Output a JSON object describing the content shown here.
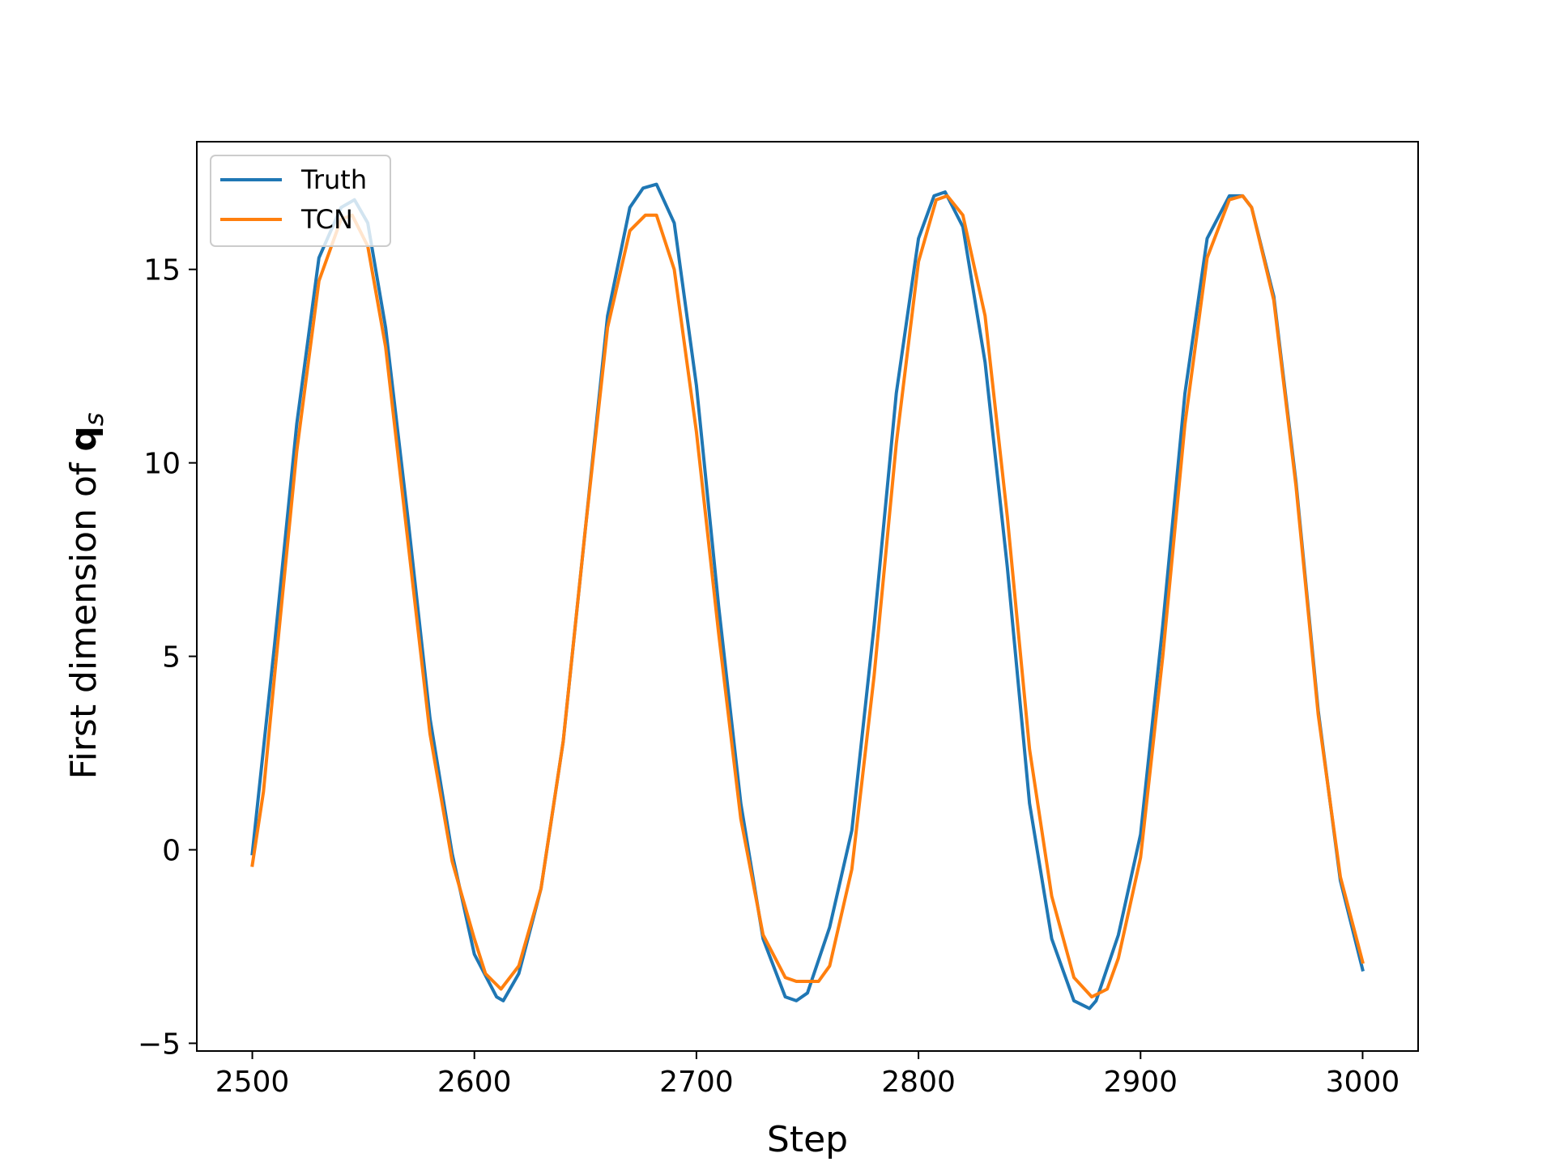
{
  "chart_data": {
    "type": "line",
    "title": "",
    "xlabel": "Step",
    "ylabel_text": "First dimension of ",
    "ylabel_symbol": "q",
    "ylabel_subscript": "s",
    "xlim": [
      2475,
      3025
    ],
    "ylim": [
      -5.2,
      18.3
    ],
    "xticks": [
      2500,
      2600,
      2700,
      2800,
      2900,
      3000
    ],
    "xtick_labels": [
      "2500",
      "2600",
      "2700",
      "2800",
      "2900",
      "3000"
    ],
    "yticks": [
      -5,
      0,
      5,
      10,
      15
    ],
    "ytick_labels": [
      "−5",
      "0",
      "5",
      "10",
      "15"
    ],
    "grid": false,
    "legend_position": "top-left",
    "series": [
      {
        "name": "Truth",
        "color": "#1f77b4",
        "x": [
          2500,
          2510,
          2520,
          2530,
          2540,
          2546,
          2552,
          2560,
          2570,
          2580,
          2590,
          2600,
          2610,
          2613,
          2620,
          2630,
          2640,
          2650,
          2660,
          2670,
          2676,
          2682,
          2690,
          2700,
          2710,
          2720,
          2730,
          2740,
          2745,
          2750,
          2760,
          2770,
          2780,
          2790,
          2800,
          2807,
          2812,
          2820,
          2830,
          2840,
          2850,
          2860,
          2870,
          2877,
          2880,
          2890,
          2900,
          2910,
          2920,
          2930,
          2940,
          2946,
          2950,
          2960,
          2970,
          2980,
          2990,
          3000
        ],
        "y": [
          -0.1,
          5.3,
          11.0,
          15.3,
          16.6,
          16.8,
          16.2,
          13.5,
          8.6,
          3.4,
          -0.1,
          -2.7,
          -3.8,
          -3.9,
          -3.2,
          -1.0,
          2.8,
          8.3,
          13.8,
          16.6,
          17.1,
          17.2,
          16.2,
          12.0,
          6.3,
          1.2,
          -2.3,
          -3.8,
          -3.9,
          -3.7,
          -2.0,
          0.5,
          5.8,
          11.8,
          15.8,
          16.9,
          17.0,
          16.1,
          12.6,
          7.3,
          1.2,
          -2.3,
          -3.9,
          -4.1,
          -3.9,
          -2.2,
          0.4,
          5.8,
          11.8,
          15.8,
          16.9,
          16.9,
          16.6,
          14.3,
          9.5,
          3.6,
          -0.8,
          -3.1
        ]
      },
      {
        "name": "TCN",
        "color": "#ff7f0e",
        "x": [
          2500,
          2505,
          2510,
          2520,
          2530,
          2540,
          2545,
          2552,
          2560,
          2570,
          2580,
          2590,
          2600,
          2605,
          2612,
          2620,
          2630,
          2640,
          2650,
          2660,
          2670,
          2677,
          2682,
          2690,
          2700,
          2710,
          2720,
          2730,
          2740,
          2745,
          2755,
          2760,
          2770,
          2780,
          2790,
          2800,
          2808,
          2813,
          2820,
          2830,
          2840,
          2850,
          2860,
          2870,
          2878,
          2885,
          2890,
          2900,
          2910,
          2920,
          2930,
          2940,
          2946,
          2950,
          2960,
          2970,
          2980,
          2990,
          3000
        ],
        "y": [
          -0.4,
          1.5,
          4.5,
          10.3,
          14.7,
          16.3,
          16.4,
          15.6,
          13.0,
          8.0,
          3.0,
          -0.3,
          -2.3,
          -3.2,
          -3.6,
          -3.0,
          -1.0,
          2.8,
          8.3,
          13.5,
          16.0,
          16.4,
          16.4,
          15.0,
          10.8,
          5.6,
          0.8,
          -2.2,
          -3.3,
          -3.4,
          -3.4,
          -3.0,
          -0.5,
          4.5,
          10.5,
          15.2,
          16.8,
          16.9,
          16.4,
          13.8,
          8.6,
          2.6,
          -1.2,
          -3.3,
          -3.8,
          -3.6,
          -2.8,
          -0.2,
          5.0,
          11.0,
          15.3,
          16.8,
          16.9,
          16.6,
          14.2,
          9.4,
          3.5,
          -0.7,
          -2.9
        ]
      }
    ]
  }
}
